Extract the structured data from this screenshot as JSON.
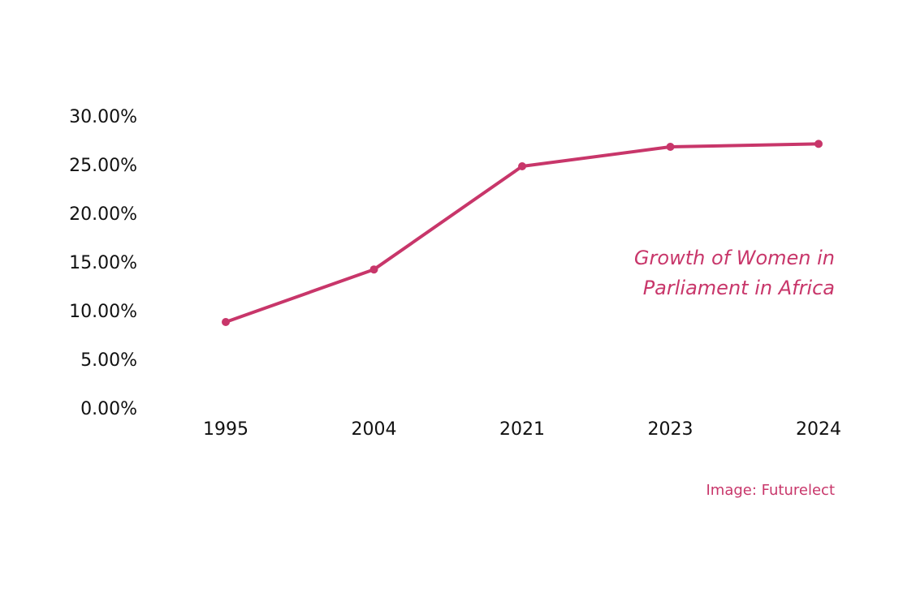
{
  "chart_data": {
    "type": "line",
    "title": "Growth of Women in Parliament in Africa",
    "xlabel": "",
    "ylabel": "",
    "categories": [
      "1995",
      "2004",
      "2021",
      "2023",
      "2024"
    ],
    "series": [
      {
        "values": [
          9.0,
          14.4,
          25.0,
          27.0,
          27.3
        ]
      }
    ],
    "ylim": [
      0,
      30
    ],
    "yticks": [
      "0.00%",
      "5.00%",
      "10.00%",
      "15.00%",
      "20.00%",
      "25.00%",
      "30.00%"
    ],
    "grid": false,
    "markers": true,
    "color": "#c8366a"
  },
  "credit": "Image: Futurelect"
}
